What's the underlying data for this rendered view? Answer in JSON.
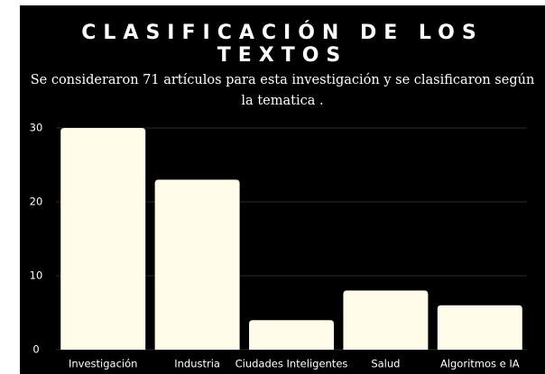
{
  "chart_data": {
    "type": "bar",
    "title": "CLASIFICACIÓN DE LOS TEXTOS",
    "subtitle": "Se consideraron 71 artículos para esta investigación y se clasificaron según la tematica .",
    "categories": [
      "Investigación",
      "Industria",
      "Ciudades Inteligentes",
      "Salud",
      "Algoritmos e IA"
    ],
    "values": [
      30,
      23,
      4,
      8,
      6
    ],
    "color": "#fffbe8",
    "ylim": [
      0,
      30
    ],
    "yticks": [
      0,
      10,
      20,
      30
    ],
    "grid": true
  }
}
